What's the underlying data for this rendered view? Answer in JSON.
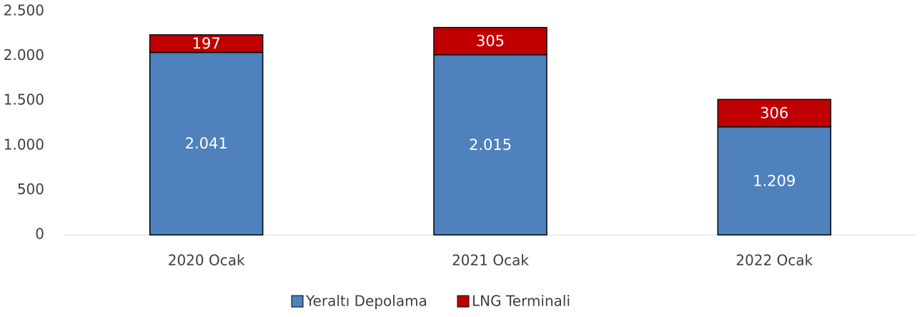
{
  "chart_data": {
    "type": "stacked_bar",
    "categories": [
      "2020 Ocak",
      "2021 Ocak",
      "2022 Ocak"
    ],
    "series": [
      {
        "name": "Yeraltı Depolama",
        "color": "#4f81bd",
        "values": [
          2041,
          2015,
          1209
        ],
        "value_labels": [
          "2.041",
          "2.015",
          "1.209"
        ]
      },
      {
        "name": "LNG Terminali",
        "color": "#c00000",
        "values": [
          197,
          305,
          306
        ]
      }
    ],
    "ylim": [
      0,
      2500
    ],
    "yticks": [
      0,
      500,
      {
        "value": 1000,
        "label": "1.000"
      },
      {
        "value": 1500,
        "label": "1.500"
      },
      {
        "value": 2000,
        "label": "2.000"
      },
      {
        "value": 2500,
        "label": "2.500"
      }
    ],
    "legend": "bottom"
  }
}
